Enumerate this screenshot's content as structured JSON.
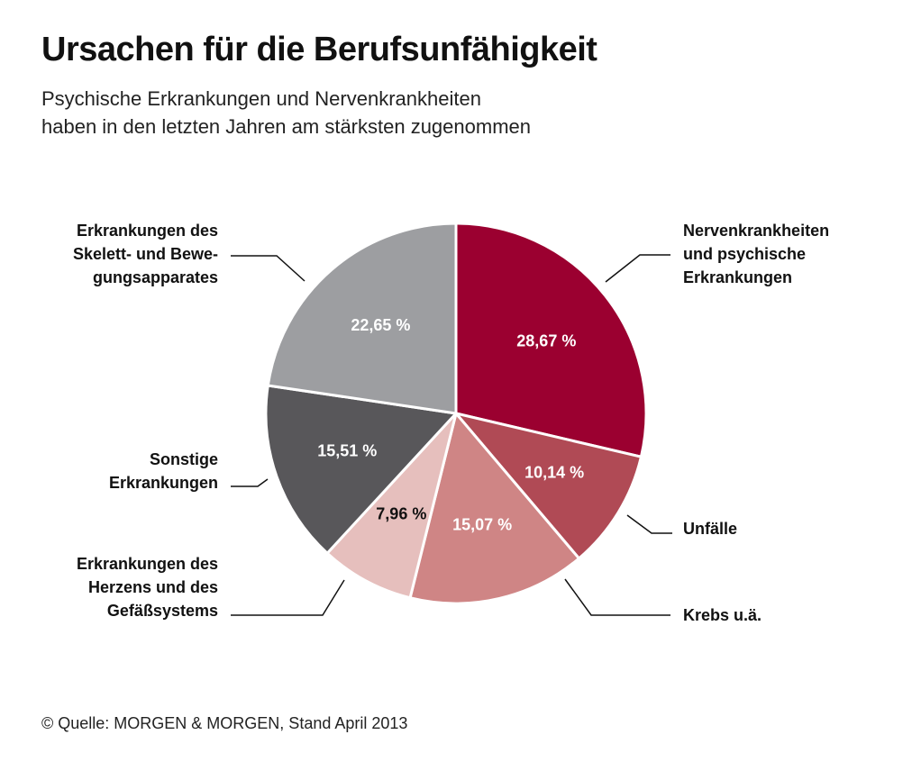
{
  "title": "Ursachen für die Berufsunfähigkeit",
  "subtitle": [
    "Psychische Erkrankungen und Nervenkrankheiten",
    "haben in den letzten Jahren am stärksten zugenommen"
  ],
  "source": "© Quelle: MORGEN & MORGEN, Stand April 2013",
  "chart_data": {
    "type": "pie",
    "title": "Ursachen für die Berufsunfähigkeit",
    "slices": [
      {
        "label": [
          "Nervenkrankheiten",
          "und psychische",
          "Erkrankungen"
        ],
        "value": 28.67,
        "value_label": "28,67 %",
        "color": "#9b0030",
        "text_color": "#ffffff"
      },
      {
        "label": [
          "Unfälle"
        ],
        "value": 10.14,
        "value_label": "10,14 %",
        "color": "#b04a55",
        "text_color": "#ffffff"
      },
      {
        "label": [
          "Krebs u.ä."
        ],
        "value": 15.07,
        "value_label": "15,07 %",
        "color": "#cf8585",
        "text_color": "#ffffff"
      },
      {
        "label": [
          "Erkrankungen des",
          "Herzens und des",
          "Gefäßsystems"
        ],
        "value": 7.96,
        "value_label": "7,96 %",
        "color": "#e6bfbd",
        "text_color": "#111111"
      },
      {
        "label": [
          "Sonstige",
          "Erkrankungen"
        ],
        "value": 15.51,
        "value_label": "15,51 %",
        "color": "#58575a",
        "text_color": "#ffffff"
      },
      {
        "label": [
          "Erkrankungen des",
          "Skelett- und Bewe-",
          "gungsapparates"
        ],
        "value": 22.65,
        "value_label": "22,65 %",
        "color": "#9d9ea1",
        "text_color": "#ffffff"
      }
    ]
  }
}
